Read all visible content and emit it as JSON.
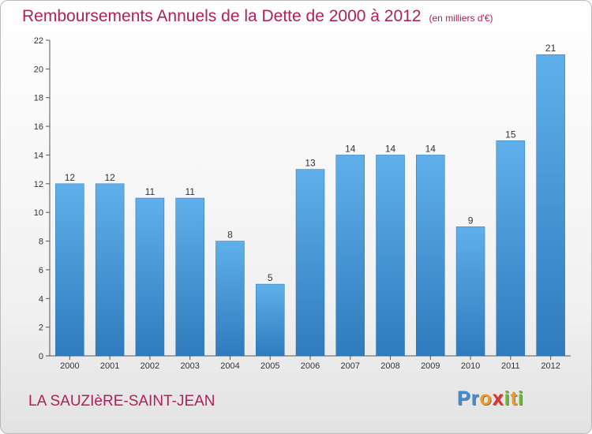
{
  "header": {
    "title": "Remboursements Annuels de la Dette de 2000 à 2012",
    "unit": "(en milliers d'€)"
  },
  "footer": {
    "commune": "LA SAUZIèRE-SAINT-JEAN",
    "logo_letters": [
      "P",
      "r",
      "o",
      "x",
      "i",
      "t",
      "i"
    ],
    "logo_colors": [
      "#3a8fd6",
      "#3a8fd6",
      "#f29b1c",
      "#e2312a",
      "#68b92b",
      "#f29b1c",
      "#68b92b"
    ]
  },
  "colors": {
    "bar": "#4f9ede",
    "bar_light": "#5fb0ea",
    "bar_dark": "#2f7bbd",
    "axis": "#555555",
    "title": "#b1205a"
  },
  "chart_data": {
    "type": "bar",
    "categories": [
      "2000",
      "2001",
      "2002",
      "2003",
      "2004",
      "2005",
      "2006",
      "2007",
      "2008",
      "2009",
      "2010",
      "2011",
      "2012"
    ],
    "values": [
      12,
      12,
      11,
      11,
      8,
      5,
      13,
      14,
      14,
      14,
      9,
      15,
      21
    ],
    "ylim": [
      0,
      22
    ],
    "yticks": [
      0,
      2,
      4,
      6,
      8,
      10,
      12,
      14,
      16,
      18,
      20,
      22
    ],
    "grid": false,
    "title": "Remboursements Annuels de la Dette de 2000 à 2012"
  }
}
